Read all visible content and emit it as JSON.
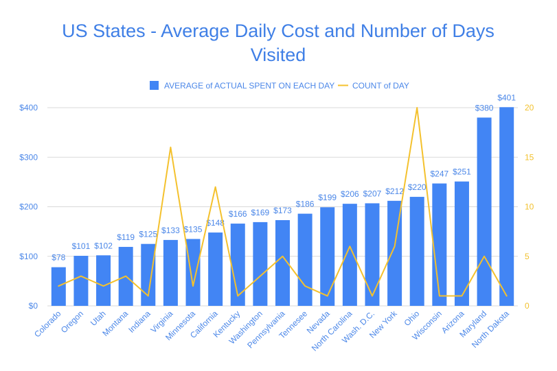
{
  "chart_data": {
    "type": "bar",
    "title_line_1": "US States - Average Daily Cost and Number of Days",
    "title_line_2": "Visited",
    "categories": [
      "Colorado",
      "Oregon",
      "Utah",
      "Montana",
      "Indiana",
      "Virginia",
      "Minnesota",
      "California",
      "Kentucky",
      "Washington",
      "Pennsylvania",
      "Tennesee",
      "Nevada",
      "North Carolina",
      "Wash. D.C.",
      "New York",
      "Ohio",
      "Wisconsin",
      "Arizona",
      "Maryland",
      "North Dakota"
    ],
    "series": [
      {
        "name": "AVERAGE of ACTUAL SPENT ON EACH DAY",
        "type": "bar",
        "axis": "left",
        "color": "#4285f4",
        "values": [
          78,
          101,
          102,
          119,
          125,
          133,
          135,
          148,
          166,
          169,
          173,
          186,
          199,
          206,
          207,
          212,
          220,
          247,
          251,
          380,
          401
        ],
        "labels": [
          "$78",
          "$101",
          "$102",
          "$119",
          "$125",
          "$133",
          "$135",
          "$148",
          "$166",
          "$169",
          "$173",
          "$186",
          "$199",
          "$206",
          "$207",
          "$212",
          "$220",
          "$247",
          "$251",
          "$380",
          "$401"
        ]
      },
      {
        "name": "COUNT of DAY",
        "type": "line",
        "axis": "right",
        "color": "#f4c12d",
        "values": [
          2,
          3,
          2,
          3,
          1,
          16,
          2,
          12,
          1,
          3,
          5,
          2,
          1,
          6,
          1,
          6,
          20,
          1,
          1,
          5,
          1
        ]
      }
    ],
    "left_axis": {
      "ylim": [
        0,
        400
      ],
      "ticks": [
        0,
        100,
        200,
        300,
        400
      ],
      "tick_labels": [
        "$0",
        "$100",
        "$200",
        "$300",
        "$400"
      ]
    },
    "right_axis": {
      "ylim": [
        0,
        20
      ],
      "ticks": [
        0,
        5,
        10,
        15,
        20
      ],
      "tick_labels": [
        "0",
        "5",
        "10",
        "15",
        "20"
      ]
    },
    "legend_position": "top-center",
    "grid": true
  }
}
